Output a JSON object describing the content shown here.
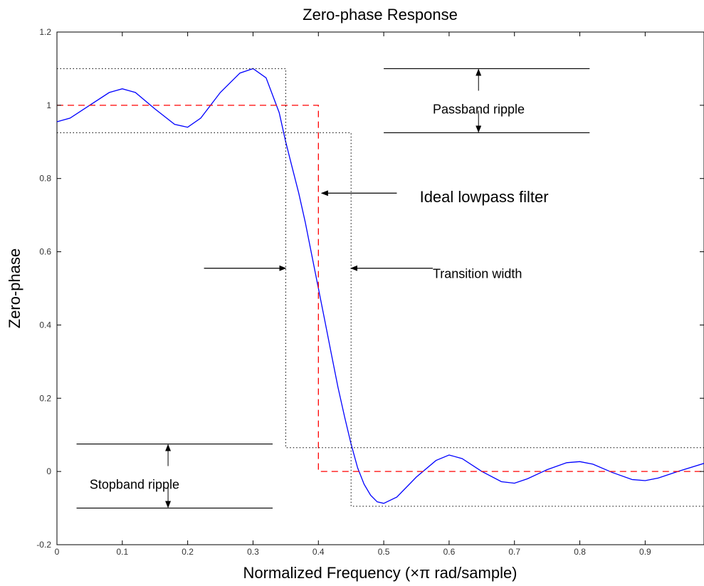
{
  "chart_data": {
    "type": "line",
    "title": "Zero-phase Response",
    "xlabel": "Normalized Frequency (×π rad/sample)",
    "ylabel": "Zero-phase",
    "xlim": [
      0,
      0.99
    ],
    "ylim": [
      -0.2,
      1.2
    ],
    "xticks": [
      0,
      0.1,
      0.2,
      0.3,
      0.4,
      0.5,
      0.6,
      0.7,
      0.8,
      0.9
    ],
    "xtick_labels": [
      "0",
      "0.1",
      "0.2",
      "0.3",
      "0.4",
      "0.5",
      "0.6",
      "0.7",
      "0.8",
      "0.9"
    ],
    "yticks": [
      -0.2,
      0,
      0.2,
      0.4,
      0.6,
      0.8,
      1,
      1.2
    ],
    "ytick_labels": [
      "-0.2",
      "0",
      "0.2",
      "0.4",
      "0.6",
      "0.8",
      "1",
      "1.2"
    ],
    "grid": false,
    "series": [
      {
        "color": "#0000ff",
        "style": "solid",
        "x": [
          0,
          0.02,
          0.05,
          0.08,
          0.1,
          0.12,
          0.15,
          0.18,
          0.2,
          0.22,
          0.25,
          0.28,
          0.3,
          0.32,
          0.34,
          0.35,
          0.36,
          0.37,
          0.38,
          0.39,
          0.4,
          0.41,
          0.42,
          0.43,
          0.44,
          0.45,
          0.46,
          0.47,
          0.48,
          0.49,
          0.5,
          0.52,
          0.55,
          0.58,
          0.6,
          0.62,
          0.65,
          0.68,
          0.7,
          0.72,
          0.75,
          0.78,
          0.8,
          0.82,
          0.85,
          0.88,
          0.9,
          0.92,
          0.95,
          0.99
        ],
        "y": [
          0.955,
          0.965,
          1.0,
          1.035,
          1.045,
          1.035,
          0.99,
          0.948,
          0.94,
          0.965,
          1.035,
          1.088,
          1.1,
          1.075,
          0.98,
          0.9,
          0.83,
          0.76,
          0.68,
          0.59,
          0.5,
          0.41,
          0.32,
          0.23,
          0.15,
          0.075,
          0.01,
          -0.035,
          -0.065,
          -0.083,
          -0.087,
          -0.07,
          -0.015,
          0.03,
          0.045,
          0.035,
          0.0,
          -0.028,
          -0.032,
          -0.02,
          0.005,
          0.024,
          0.027,
          0.02,
          -0.003,
          -0.022,
          -0.025,
          -0.018,
          0.0,
          0.022
        ]
      },
      {
        "color": "#ff0000",
        "style": "dashed",
        "x": [
          0,
          0.4,
          0.4,
          0.99
        ],
        "y": [
          1,
          1,
          0,
          0
        ]
      },
      {
        "color": "#000000",
        "style": "dotted",
        "x": [
          0,
          0.35,
          0.35,
          0.99
        ],
        "y": [
          1.1,
          1.1,
          0.065,
          0.065
        ]
      },
      {
        "color": "#000000",
        "style": "dotted",
        "x": [
          0,
          0.45,
          0.45,
          0.99
        ],
        "y": [
          0.925,
          0.925,
          -0.095,
          -0.095
        ]
      }
    ],
    "annotations": [
      {
        "text": "Passband ripple",
        "x": 0.575,
        "y": 0.99,
        "size": 18
      },
      {
        "text": "Ideal lowpass filter",
        "x": 0.555,
        "y": 0.75,
        "size": 22
      },
      {
        "text": "Transition width",
        "x": 0.575,
        "y": 0.54,
        "size": 18
      },
      {
        "text": "Stopband ripple",
        "x": 0.05,
        "y": -0.035,
        "size": 18
      }
    ],
    "ripple_markers": {
      "passband": {
        "x1": 0.5,
        "x2": 0.815,
        "y_top": 1.1,
        "y_bottom": 0.925,
        "arrow_x": 0.645
      },
      "stopband": {
        "x1": 0.03,
        "x2": 0.33,
        "y_top": 0.075,
        "y_bottom": -0.1,
        "arrow_x": 0.17
      }
    },
    "arrows": [
      {
        "from": [
          0.52,
          0.76
        ],
        "to": [
          0.405,
          0.76
        ]
      },
      {
        "from": [
          0.225,
          0.555
        ],
        "to": [
          0.35,
          0.555
        ]
      },
      {
        "from": [
          0.575,
          0.555
        ],
        "to": [
          0.45,
          0.555
        ]
      }
    ]
  }
}
